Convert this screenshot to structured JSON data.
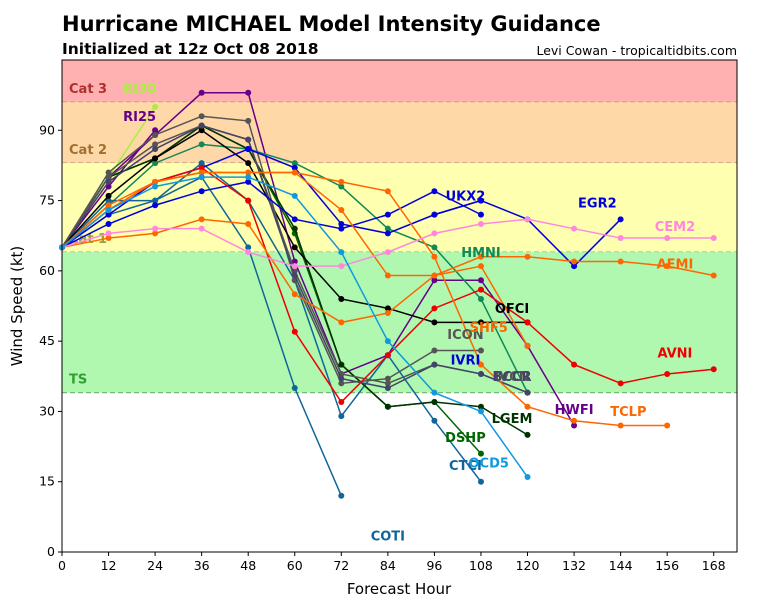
{
  "header": {
    "title": "Hurricane MICHAEL Model Intensity Guidance",
    "subtitle": "Initialized at 12z Oct 08 2018",
    "credit": "Levi Cowan - tropicaltidbits.com"
  },
  "chart_data": {
    "type": "line",
    "title": "Hurricane MICHAEL Model Intensity Guidance",
    "subtitle": "Initialized at 12z Oct 08 2018",
    "xlabel": "Forecast Hour",
    "ylabel": "Wind Speed (kt)",
    "xlim": [
      0,
      174
    ],
    "ylim": [
      0,
      105
    ],
    "xticks": [
      0,
      12,
      24,
      36,
      48,
      60,
      72,
      84,
      96,
      108,
      120,
      132,
      144,
      156,
      168
    ],
    "yticks": [
      0,
      15,
      30,
      45,
      60,
      75,
      90
    ],
    "bands": [
      {
        "name": "Cat 3",
        "from": 96,
        "to": 105,
        "color": "#ffb0b0",
        "label_color": "#b03030",
        "line_color": "#c07070"
      },
      {
        "name": "Cat 2",
        "from": 83,
        "to": 96,
        "color": "#ffd8a8",
        "label_color": "#a07030",
        "line_color": "#b09070"
      },
      {
        "name": "Cat 1",
        "from": 64,
        "to": 83,
        "color": "#ffffb0",
        "label_color": "#a0a040",
        "line_color": "#b0a070"
      },
      {
        "name": "TS",
        "from": 34,
        "to": 64,
        "color": "#b0f8b0",
        "label_color": "#30a030",
        "line_color": "#70b070"
      }
    ],
    "series": [
      {
        "name": "RI30",
        "color": "#aaee44",
        "x": [
          0,
          12,
          24
        ],
        "values": [
          65,
          80,
          95
        ],
        "label_at": [
          20,
          98
        ]
      },
      {
        "name": "RI25",
        "color": "#660088",
        "x": [
          0,
          12,
          24
        ],
        "values": [
          65,
          78,
          90
        ],
        "label_at": [
          20,
          92
        ]
      },
      {
        "name": "HWFI",
        "color": "#660088",
        "x": [
          0,
          12,
          24,
          36,
          48,
          60,
          72,
          84,
          96,
          108,
          120,
          132
        ],
        "values": [
          65,
          80,
          89,
          98,
          98,
          62,
          38,
          42,
          58,
          58,
          44,
          27
        ],
        "label_at": [
          132,
          29.5
        ]
      },
      {
        "name": "HMNI",
        "color": "#118855",
        "x": [
          0,
          12,
          24,
          36,
          48,
          60,
          72,
          84,
          96,
          108,
          120
        ],
        "values": [
          65,
          74,
          83,
          87,
          86,
          83,
          78,
          69,
          65,
          54,
          34
        ],
        "label_at": [
          108,
          63
        ]
      },
      {
        "name": "CTCI",
        "color": "#116699",
        "x": [
          0,
          12,
          24,
          36,
          48,
          60,
          72,
          84,
          96,
          108
        ],
        "values": [
          65,
          75,
          75,
          83,
          75,
          58,
          29,
          42,
          28,
          15
        ],
        "label_at": [
          104,
          17.5
        ]
      },
      {
        "name": "COTI",
        "color": "#116699",
        "x": [
          0,
          12,
          24,
          36,
          48,
          60,
          72
        ],
        "values": [
          65,
          72,
          75,
          80,
          65,
          35,
          12
        ],
        "label_at": [
          84,
          2.5
        ]
      },
      {
        "name": "DSHP",
        "color": "#006600",
        "x": [
          0,
          12,
          24,
          36,
          48,
          60,
          72,
          84,
          96,
          108
        ],
        "values": [
          65,
          80,
          84,
          91,
          86,
          68,
          40,
          31,
          32,
          21
        ],
        "label_at": [
          104,
          23.5
        ]
      },
      {
        "name": "LGEM",
        "color": "#003300",
        "x": [
          0,
          12,
          24,
          36,
          48,
          60,
          72,
          84,
          96,
          108,
          120
        ],
        "values": [
          65,
          80,
          84,
          91,
          86,
          69,
          40,
          31,
          32,
          31,
          25
        ],
        "label_at": [
          116,
          27.5
        ]
      },
      {
        "name": "OFCI",
        "color": "#000000",
        "x": [
          0,
          12,
          24,
          36,
          48,
          60,
          72,
          84,
          96,
          108,
          120
        ],
        "values": [
          65,
          76,
          84,
          90,
          83,
          65,
          54,
          52,
          49,
          49,
          49
        ],
        "label_at": [
          116,
          51
        ]
      },
      {
        "name": "ICON",
        "color": "#555555",
        "x": [
          0,
          12,
          24,
          36,
          48,
          60,
          72,
          84,
          96,
          108
        ],
        "values": [
          65,
          81,
          89,
          93,
          92,
          58,
          36,
          37,
          43,
          43
        ],
        "label_at": [
          104,
          45.5
        ]
      },
      {
        "name": "IVCN",
        "color": "#555555",
        "x": [
          0,
          12,
          24,
          36,
          48,
          60,
          72,
          84,
          96,
          108,
          120
        ],
        "values": [
          65,
          80,
          87,
          91,
          88,
          60,
          38,
          36,
          40,
          38,
          34
        ],
        "label_at": [
          116,
          36.5
        ]
      },
      {
        "name": "BCCR",
        "color": "#444466",
        "x": [
          0,
          12,
          24,
          36,
          48,
          60,
          72,
          84,
          96,
          108,
          120
        ],
        "values": [
          65,
          79,
          86,
          91,
          88,
          59,
          37,
          35,
          40,
          38,
          34
        ],
        "label_at": [
          116,
          36.5
        ]
      },
      {
        "name": "IVRI",
        "color": "#0000dd",
        "x": [
          0,
          12,
          24,
          36,
          48,
          60,
          72,
          84,
          96,
          108
        ],
        "values": [
          65,
          72,
          79,
          82,
          86,
          82,
          70,
          68,
          72,
          75
        ],
        "label_at": [
          104,
          40
        ]
      },
      {
        "name": "UKX2",
        "color": "#0000dd",
        "x": [
          0,
          12,
          24,
          36,
          48,
          60,
          72,
          84,
          96,
          108
        ],
        "values": [
          65,
          70,
          74,
          77,
          79,
          71,
          69,
          72,
          77,
          72
        ],
        "label_at": [
          104,
          75
        ]
      },
      {
        "name": "EGR2",
        "color": "#0000dd",
        "x": [
          96,
          108,
          120,
          132,
          144
        ],
        "values": [
          72,
          75,
          71,
          61,
          71
        ],
        "label_at": [
          138,
          73.5
        ]
      },
      {
        "name": "AVNI",
        "color": "#ee0000",
        "x": [
          0,
          12,
          24,
          36,
          48,
          60,
          72,
          84,
          96,
          108,
          120,
          132,
          144,
          156,
          168
        ],
        "values": [
          65,
          73,
          79,
          82,
          75,
          47,
          32,
          42,
          52,
          56,
          49,
          40,
          36,
          38,
          39
        ],
        "label_at": [
          158,
          41.5
        ]
      },
      {
        "name": "SHF5",
        "color": "#ff6600",
        "x": [
          0,
          12,
          24,
          36,
          48,
          60,
          72,
          84,
          96,
          108,
          120
        ],
        "values": [
          65,
          74,
          79,
          81,
          81,
          81,
          73,
          59,
          59,
          61,
          44
        ],
        "label_at": [
          110,
          47
        ]
      },
      {
        "name": "AEMI",
        "color": "#ff6600",
        "x": [
          0,
          12,
          24,
          36,
          48,
          60,
          72,
          84,
          96,
          108,
          120,
          132,
          144,
          156,
          168
        ],
        "values": [
          65,
          67,
          68,
          71,
          70,
          55,
          49,
          51,
          59,
          63,
          63,
          62,
          62,
          61,
          59
        ],
        "label_at": [
          158,
          60.5
        ]
      },
      {
        "name": "TCLP",
        "color": "#ff6600",
        "x": [
          0,
          12,
          24,
          36,
          48,
          60,
          72,
          84,
          96,
          108,
          120,
          132,
          144,
          156
        ],
        "values": [
          65,
          73,
          79,
          81,
          81,
          81,
          79,
          77,
          63,
          40,
          31,
          28,
          27,
          27
        ],
        "label_at": [
          146,
          29
        ]
      },
      {
        "name": "CEM2",
        "color": "#ff88dd",
        "x": [
          0,
          12,
          24,
          36,
          48,
          60,
          72,
          84,
          96,
          108,
          120,
          132,
          144,
          156,
          168
        ],
        "values": [
          65,
          68,
          69,
          69,
          64,
          61,
          61,
          64,
          68,
          70,
          71,
          69,
          67,
          67,
          67
        ],
        "label_at": [
          158,
          68.5
        ]
      },
      {
        "name": "OCD5",
        "color": "#1199dd",
        "x": [
          0,
          12,
          24,
          36,
          48,
          60,
          72,
          84,
          96,
          108,
          120
        ],
        "values": [
          65,
          73,
          78,
          80,
          80,
          76,
          64,
          45,
          34,
          30,
          16
        ],
        "label_at": [
          110,
          18
        ]
      }
    ]
  }
}
